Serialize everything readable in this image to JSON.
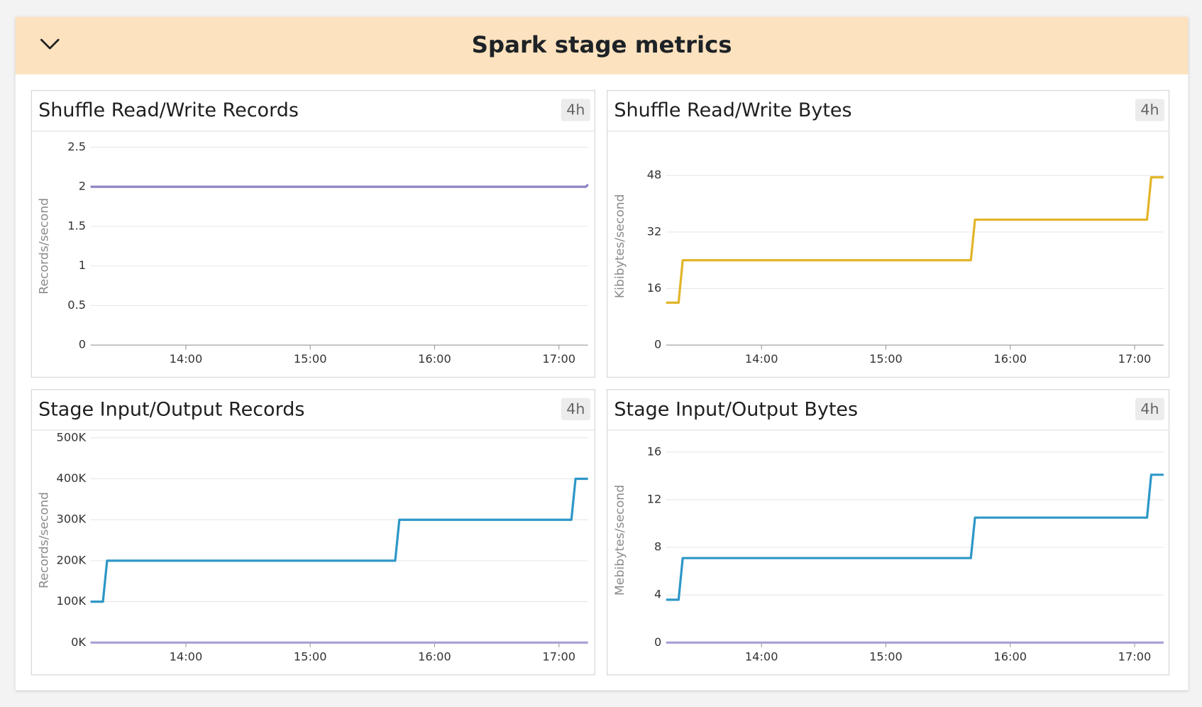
{
  "section_title": "Spark stage metrics",
  "chart_data": [
    {
      "type": "line",
      "title": "Shuffle Read/Write Records",
      "badge": "4h",
      "ylabel": "Records/second",
      "x": [
        "13:14",
        "17:13",
        "17:14"
      ],
      "series": [
        {
          "color": "#8f83c2",
          "values": [
            2,
            2,
            2.03
          ]
        }
      ],
      "xlim": [
        "13:14",
        "17:14"
      ],
      "xticks": [
        "14:00",
        "15:00",
        "16:00",
        "17:00"
      ],
      "ylim": [
        0,
        2.5
      ],
      "yticks": [
        0,
        0.5,
        1,
        1.5,
        2,
        2.5
      ],
      "grid": true
    },
    {
      "type": "line",
      "title": "Shuffle Read/Write Bytes",
      "badge": "4h",
      "ylabel": "Kibibytes/second",
      "x": [
        "13:14",
        "13:20",
        "13:22",
        "15:41",
        "15:43",
        "17:06",
        "17:08",
        "17:14"
      ],
      "series": [
        {
          "color": "#e2b52a",
          "values": [
            12,
            12,
            24,
            24,
            35.5,
            35.5,
            47.5,
            47.5
          ]
        }
      ],
      "xlim": [
        "13:14",
        "17:14"
      ],
      "xticks": [
        "14:00",
        "15:00",
        "16:00",
        "17:00"
      ],
      "ylim": [
        0,
        56
      ],
      "yticks": [
        0,
        16,
        32,
        48
      ],
      "grid": true
    },
    {
      "type": "line",
      "title": "Stage Input/Output Records",
      "badge": "4h",
      "ylabel": "Records/second",
      "x": [
        "13:14",
        "13:20",
        "13:22",
        "15:41",
        "15:43",
        "17:06",
        "17:08",
        "17:14"
      ],
      "series": [
        {
          "color": "#2e97c7",
          "values": [
            100000,
            100000,
            200000,
            200000,
            300000,
            300000,
            400000,
            400000
          ]
        },
        {
          "color": "#a9a2d6",
          "values": [
            0,
            0,
            0,
            0,
            0,
            0,
            0,
            0
          ]
        }
      ],
      "xlim": [
        "13:14",
        "17:14"
      ],
      "xticks": [
        "14:00",
        "15:00",
        "16:00",
        "17:00"
      ],
      "ylim": [
        0,
        500000
      ],
      "yticks": [
        {
          "value": 0,
          "label": "0K"
        },
        {
          "value": 100000,
          "label": "100K"
        },
        {
          "value": 200000,
          "label": "200K"
        },
        {
          "value": 300000,
          "label": "300K"
        },
        {
          "value": 400000,
          "label": "400K"
        },
        {
          "value": 500000,
          "label": "500K"
        }
      ],
      "grid": true
    },
    {
      "type": "line",
      "title": "Stage Input/Output Bytes",
      "badge": "4h",
      "ylabel": "Mebibytes/second",
      "x": [
        "13:14",
        "13:20",
        "13:22",
        "15:41",
        "15:43",
        "17:06",
        "17:08",
        "17:14"
      ],
      "series": [
        {
          "color": "#2e97c7",
          "values": [
            3.6,
            3.6,
            7.1,
            7.1,
            10.5,
            10.5,
            14.1,
            14.1
          ]
        },
        {
          "color": "#a9a2d6",
          "values": [
            0,
            0,
            0,
            0,
            0,
            0,
            0,
            0
          ]
        }
      ],
      "xlim": [
        "13:14",
        "17:14"
      ],
      "xticks": [
        "14:00",
        "15:00",
        "16:00",
        "17:00"
      ],
      "ylim": [
        0,
        17.2
      ],
      "yticks": [
        0,
        4,
        8,
        12,
        16
      ],
      "grid": true
    }
  ]
}
